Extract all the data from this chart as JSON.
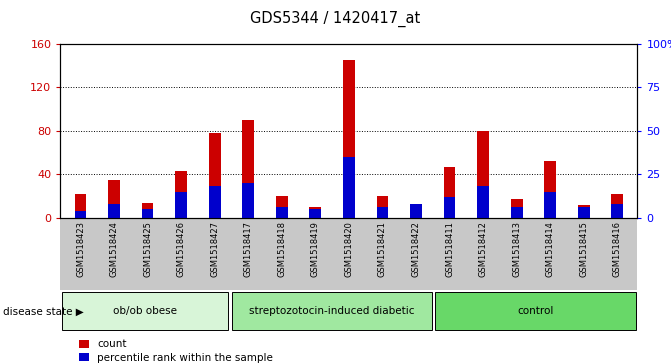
{
  "title": "GDS5344 / 1420417_at",
  "samples": [
    "GSM1518423",
    "GSM1518424",
    "GSM1518425",
    "GSM1518426",
    "GSM1518427",
    "GSM1518417",
    "GSM1518418",
    "GSM1518419",
    "GSM1518420",
    "GSM1518421",
    "GSM1518422",
    "GSM1518411",
    "GSM1518412",
    "GSM1518413",
    "GSM1518414",
    "GSM1518415",
    "GSM1518416"
  ],
  "counts": [
    22,
    35,
    14,
    43,
    78,
    90,
    20,
    10,
    145,
    20,
    13,
    47,
    80,
    17,
    52,
    12,
    22
  ],
  "percentiles": [
    4,
    8,
    5,
    15,
    18,
    20,
    6,
    5,
    35,
    6,
    8,
    12,
    18,
    6,
    15,
    6,
    8
  ],
  "groups": [
    {
      "label": "ob/ob obese",
      "start": 0,
      "end": 5
    },
    {
      "label": "streptozotocin-induced diabetic",
      "start": 5,
      "end": 11
    },
    {
      "label": "control",
      "start": 11,
      "end": 17
    }
  ],
  "group_colors": [
    "#d8f5d8",
    "#a0e8a0",
    "#68d868"
  ],
  "ylim_left": [
    0,
    160
  ],
  "ylim_right": [
    0,
    100
  ],
  "yticks_left": [
    0,
    40,
    80,
    120,
    160
  ],
  "yticks_right": [
    0,
    25,
    50,
    75,
    100
  ],
  "yticklabels_right": [
    "0",
    "25",
    "50",
    "75",
    "100%"
  ],
  "bar_color_red": "#cc0000",
  "bar_color_blue": "#0000cc",
  "bg_color_xticklabels": "#c8c8c8",
  "plot_bg": "#ffffff",
  "legend_items": [
    "count",
    "percentile rank within the sample"
  ],
  "disease_state_label": "disease state",
  "bar_width": 0.35
}
